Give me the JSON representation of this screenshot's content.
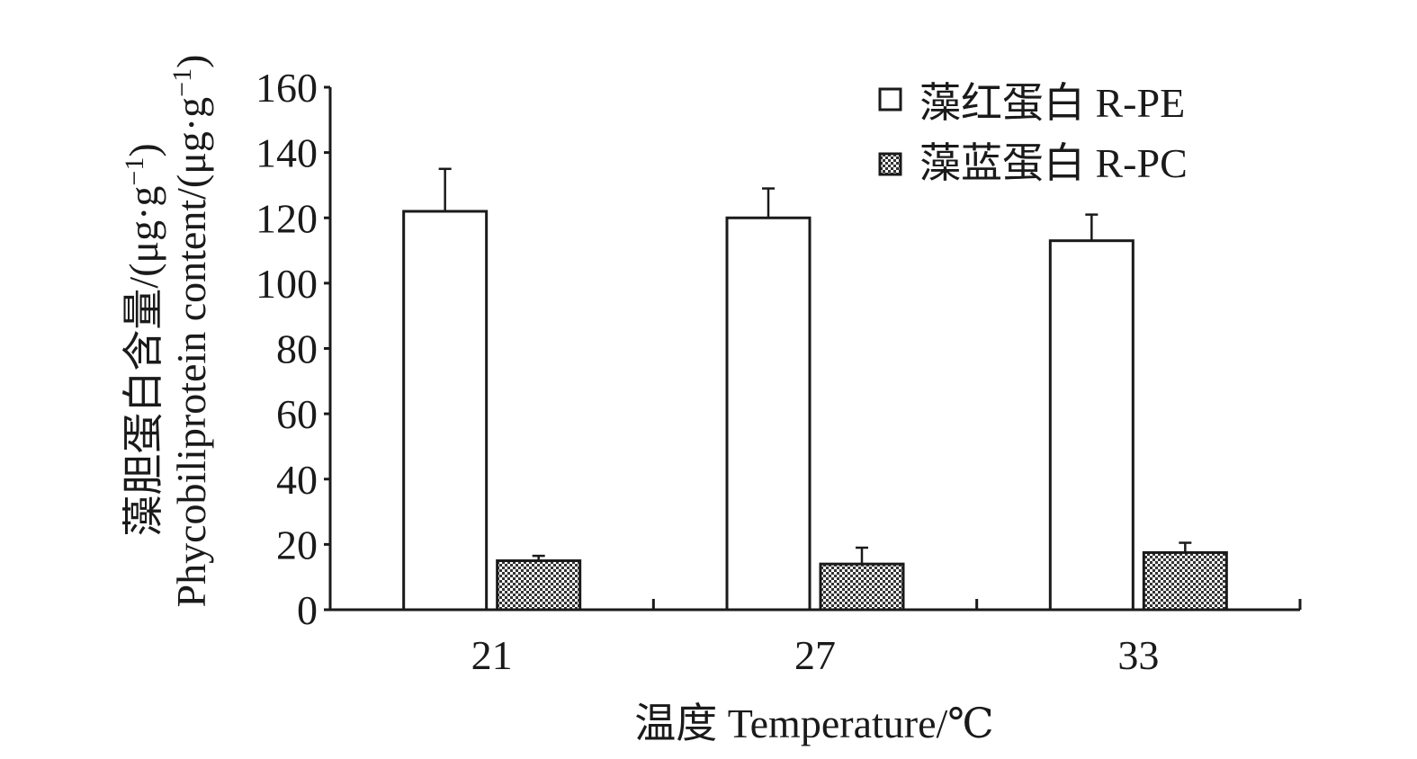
{
  "chart_data": {
    "type": "bar",
    "categories": [
      "21",
      "27",
      "33"
    ],
    "series": [
      {
        "name": "藻红蛋白 R-PE",
        "values": [
          122,
          120,
          113
        ],
        "errors": [
          13,
          9,
          8
        ],
        "fill": "#ffffff",
        "pattern": "none"
      },
      {
        "name": "藻蓝蛋白 R-PC",
        "values": [
          15,
          14,
          17.5
        ],
        "errors": [
          1.5,
          5,
          3
        ],
        "fill": "#4d4d4d",
        "pattern": "checker"
      }
    ],
    "xlabel": "温度 Temperature/℃",
    "ylabel_cn": "藻胆蛋白含量/(μg·g",
    "ylabel_en": "Phycobiliprotein content/(μg·g",
    "ylabel_exponent": "−1",
    "ylabel_close": ")",
    "ylim": [
      0,
      160
    ],
    "yticks": [
      "0",
      "20",
      "40",
      "60",
      "80",
      "100",
      "120",
      "140",
      "160"
    ],
    "grid": false,
    "legend_position": "top-right"
  }
}
